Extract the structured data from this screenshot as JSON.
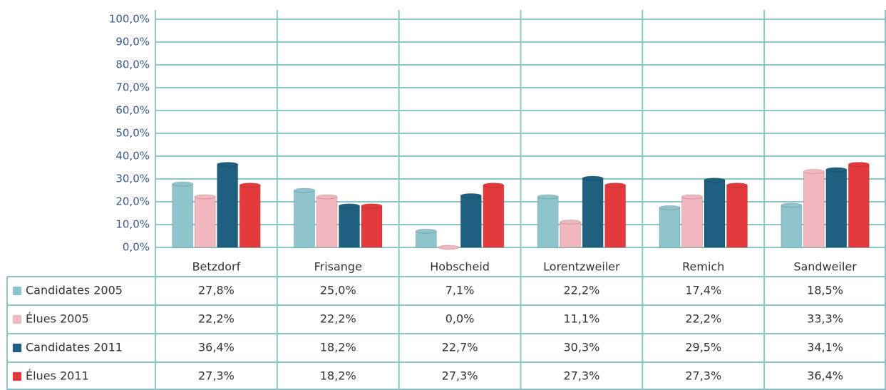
{
  "chart_data": {
    "type": "bar",
    "categories": [
      "Betzdorf",
      "Frisange",
      "Hobscheid",
      "Lorentzweiler",
      "Remich",
      "Sandweiler"
    ],
    "series": [
      {
        "name": "Candidates 2005",
        "color": "#8ec4cc",
        "values": [
          27.8,
          25.0,
          7.1,
          22.2,
          17.4,
          18.5
        ],
        "value_labels": [
          "27,8%",
          "25,0%",
          "7,1%",
          "22,2%",
          "17,4%",
          "18,5%"
        ]
      },
      {
        "name": "Élues 2005",
        "color": "#f2b6be",
        "values": [
          22.2,
          22.2,
          0.0,
          11.1,
          22.2,
          33.3
        ],
        "value_labels": [
          "22,2%",
          "22,2%",
          "0,0%",
          "11,1%",
          "22,2%",
          "33,3%"
        ]
      },
      {
        "name": "Candidates 2011",
        "color": "#1f5f80",
        "values": [
          36.4,
          18.2,
          22.7,
          30.3,
          29.5,
          34.1
        ],
        "value_labels": [
          "36,4%",
          "18,2%",
          "22,7%",
          "30,3%",
          "29,5%",
          "34,1%"
        ]
      },
      {
        "name": "Élues 2011",
        "color": "#e43a3c",
        "values": [
          27.3,
          18.2,
          27.3,
          27.3,
          27.3,
          36.4
        ],
        "value_labels": [
          "27,3%",
          "18,2%",
          "27,3%",
          "27,3%",
          "27,3%",
          "36,4%"
        ]
      }
    ],
    "ylim": [
      0,
      100
    ],
    "yticks": [
      {
        "value": 0,
        "label": "0,0%"
      },
      {
        "value": 10,
        "label": "10,0%"
      },
      {
        "value": 20,
        "label": "20,0%"
      },
      {
        "value": 30,
        "label": "30,0%"
      },
      {
        "value": 40,
        "label": "40,0%"
      },
      {
        "value": 50,
        "label": "50,0%"
      },
      {
        "value": 60,
        "label": "60,0%"
      },
      {
        "value": 70,
        "label": "70,0%"
      },
      {
        "value": 80,
        "label": "80,0%"
      },
      {
        "value": 90,
        "label": "90,0%"
      },
      {
        "value": 100,
        "label": "100,0%"
      }
    ],
    "grid": true
  }
}
